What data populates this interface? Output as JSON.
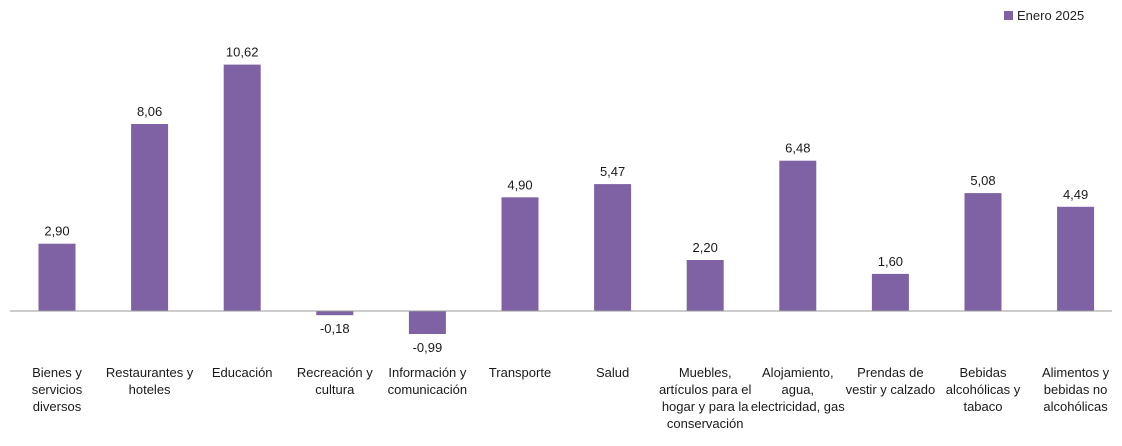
{
  "chart_data": {
    "type": "bar",
    "categories": [
      "Bienes y servicios diversos",
      "Restaurantes y hoteles",
      "Educación",
      "Recreación y cultura",
      "Información y comunicación",
      "Transporte",
      "Salud",
      "Muebles, artículos para el hogar y para la conservación",
      "Alojamiento, agua, electricidad, gas",
      "Prendas de vestir y calzado",
      "Bebidas alcohólicas y tabaco",
      "Alimentos y bebidas no alcohólicas"
    ],
    "series": [
      {
        "name": "Enero 2025",
        "values": [
          2.9,
          8.06,
          10.62,
          -0.18,
          -0.99,
          4.9,
          5.47,
          2.2,
          6.48,
          1.6,
          5.08,
          4.49
        ],
        "labels": [
          "2,90",
          "8,06",
          "10,62",
          "-0,18",
          "-0,99",
          "4,90",
          "5,47",
          "2,20",
          "6,48",
          "1,60",
          "5,08",
          "4,49"
        ]
      }
    ],
    "ylim": [
      -1.5,
      11.5
    ],
    "grid": false,
    "legend_position": "top-right",
    "colors": {
      "bar": "#7f62a3",
      "axis": "#9a9a9a"
    }
  }
}
